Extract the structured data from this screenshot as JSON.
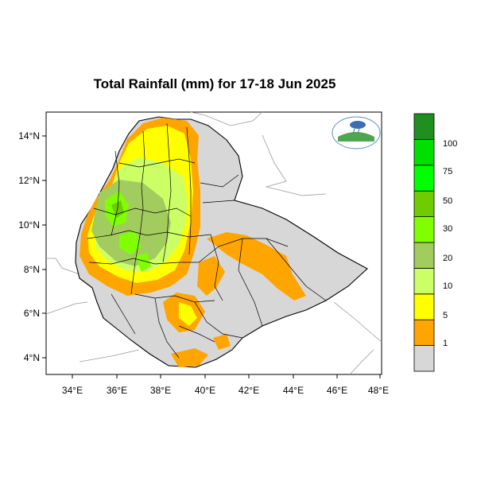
{
  "title": "Total Rainfall (mm) for 17-18 Jun 2025",
  "lat_labels": [
    "14°N",
    "12°N",
    "10°N",
    "8°N",
    "6°N",
    "4°N"
  ],
  "lon_labels": [
    "34°E",
    "36°E",
    "38°E",
    "40°E",
    "42°E",
    "44°E",
    "46°E",
    "48°E"
  ],
  "legend": {
    "labels": [
      "1",
      "5",
      "10",
      "20",
      "30",
      "50",
      "75",
      "100"
    ],
    "colors": [
      "#d7d7d7",
      "#ffa500",
      "#ffff00",
      "#ccff66",
      "#a3cc5e",
      "#80ff00",
      "#6fcc00",
      "#00ff00",
      "#00e000",
      "#1f8f1f"
    ]
  },
  "map": {
    "land_color": "#d7d7d7",
    "sea_color": "#ffffff",
    "border_color": "#000000"
  }
}
